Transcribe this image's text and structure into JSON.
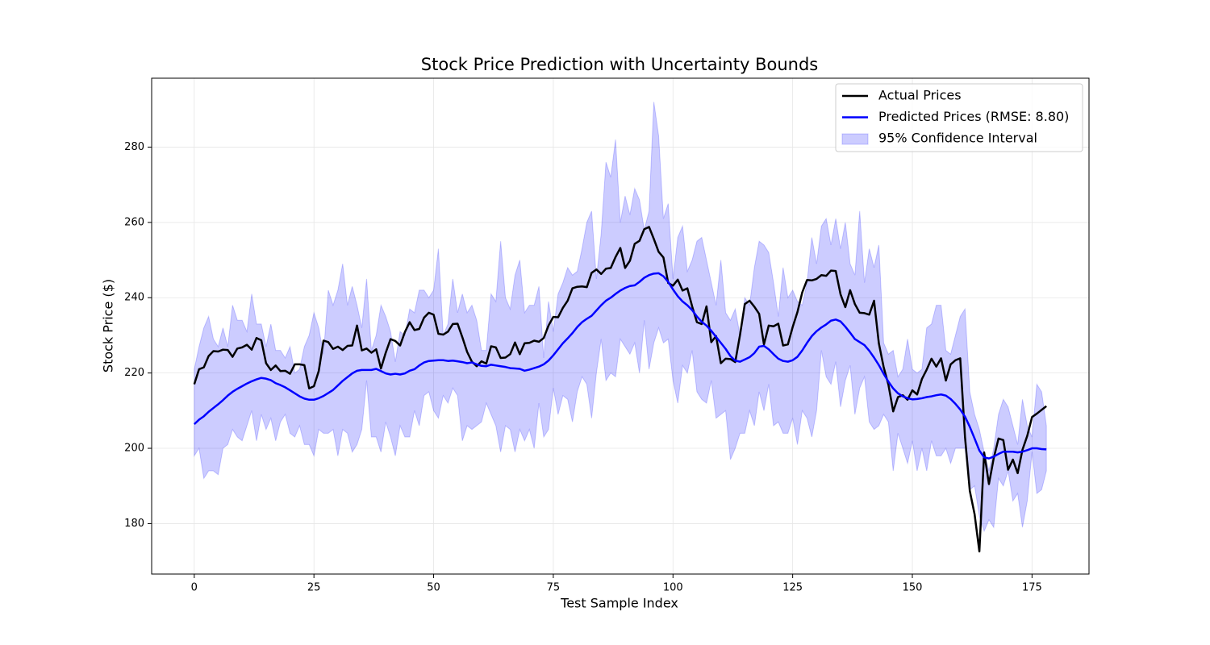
{
  "chart_data": {
    "type": "line",
    "title": "Stock Price Prediction with Uncertainty Bounds",
    "xlabel": "Test Sample Index",
    "ylabel": "Stock Price ($)",
    "x": [
      0,
      1,
      2,
      3,
      4,
      5,
      6,
      7,
      8,
      9,
      10,
      11,
      12,
      13,
      14,
      15,
      16,
      17,
      18,
      19,
      20,
      21,
      22,
      23,
      24,
      25,
      26,
      27,
      28,
      29,
      30,
      31,
      32,
      33,
      34,
      35,
      36,
      37,
      38,
      39,
      40,
      41,
      42,
      43,
      44,
      45,
      46,
      47,
      48,
      49,
      50,
      51,
      52,
      53,
      54,
      55,
      56,
      57,
      58,
      59,
      60,
      61,
      62,
      63,
      64,
      65,
      66,
      67,
      68,
      69,
      70,
      71,
      72,
      73,
      74,
      75,
      76,
      77,
      78,
      79,
      80,
      81,
      82,
      83,
      84,
      85,
      86,
      87,
      88,
      89,
      90,
      91,
      92,
      93,
      94,
      95,
      96,
      97,
      98,
      99,
      100,
      101,
      102,
      103,
      104,
      105,
      106,
      107,
      108,
      109,
      110,
      111,
      112,
      113,
      114,
      115,
      116,
      117,
      118,
      119,
      120,
      121,
      122,
      123,
      124,
      125,
      126,
      127,
      128,
      129,
      130,
      131,
      132,
      133,
      134,
      135,
      136,
      137,
      138,
      139,
      140,
      141,
      142,
      143,
      144,
      145,
      146,
      147,
      148,
      149,
      150,
      151,
      152,
      153,
      154,
      155,
      156,
      157,
      158,
      159,
      160,
      161,
      162,
      163,
      164,
      165,
      166,
      167,
      168,
      169,
      170,
      171,
      172,
      173,
      174,
      175,
      176,
      177,
      178
    ],
    "series": [
      {
        "name": "Actual Prices",
        "color": "#000000",
        "values": [
          217,
          221,
          221.5,
          224.5,
          225.8,
          225.7,
          226.2,
          226.1,
          224.3,
          226.5,
          226.8,
          227.5,
          226.2,
          229.3,
          228.7,
          222.6,
          220.8,
          222,
          220.5,
          220.6,
          219.8,
          222.3,
          222.3,
          222.1,
          215.9,
          216.5,
          220.5,
          228.6,
          228.2,
          226.4,
          227,
          226.1,
          227.2,
          227.3,
          232.6,
          226,
          226.5,
          225.4,
          226.3,
          221.2,
          225.4,
          229,
          228.5,
          227.3,
          230.9,
          233.5,
          231.4,
          231.7,
          234.7,
          236,
          235.5,
          230.4,
          230.2,
          231,
          233,
          233.1,
          229.5,
          225.6,
          223,
          221.8,
          223.1,
          222.5,
          227.1,
          226.8,
          224,
          224.1,
          225,
          228.1,
          225,
          227.9,
          228,
          228.6,
          228.3,
          229.3,
          232.6,
          234.9,
          234.8,
          237.3,
          239.2,
          242.5,
          242.9,
          243,
          242.8,
          246.6,
          247.5,
          246.3,
          247.7,
          247.9,
          250.8,
          253.2,
          247.9,
          249.8,
          254.3,
          255.1,
          258.2,
          258.8,
          255.6,
          252.2,
          250.7,
          243.9,
          243.2,
          244.8,
          241.9,
          242.5,
          237.7,
          233.5,
          233,
          237.7,
          228.2,
          229.8,
          222.6,
          223.8,
          223.7,
          222.9,
          230.1,
          238.3,
          239.2,
          237.6,
          235.7,
          227.6,
          232.6,
          232.4,
          233.1,
          227.3,
          227.6,
          232.2,
          236.2,
          241.4,
          244.7,
          244.6,
          245,
          246,
          245.8,
          247.2,
          247.1,
          240.9,
          237.5,
          242,
          238.3,
          236,
          235.9,
          235.5,
          239.2,
          227.9,
          221.6,
          216.9,
          209.8,
          213.6,
          214.1,
          212.9,
          215.4,
          214.3,
          218.4,
          220.9,
          223.8,
          221.7,
          223.9,
          218,
          222.3,
          223.4,
          223.9,
          203,
          188.7,
          182.5,
          172.6,
          198.9,
          190.5,
          197.4,
          202.6,
          202.2,
          194.3,
          197,
          193.4,
          199.6,
          203.3,
          208.3,
          209.2,
          210.2,
          211.2
        ]
      },
      {
        "name": "Predicted Prices (RMSE: 8.80)",
        "color": "#0000ff",
        "values": [
          206.4,
          207.6,
          208.5,
          209.7,
          210.7,
          211.7,
          212.8,
          214,
          215,
          215.8,
          216.5,
          217.2,
          217.8,
          218.3,
          218.7,
          218.5,
          218.1,
          217.3,
          216.8,
          216.2,
          215.4,
          214.6,
          213.8,
          213.2,
          212.9,
          212.9,
          213.3,
          213.9,
          214.7,
          215.5,
          216.7,
          217.9,
          218.9,
          219.9,
          220.6,
          220.8,
          220.8,
          220.8,
          221.1,
          220.5,
          219.9,
          219.6,
          219.8,
          219.6,
          219.9,
          220.6,
          221,
          222,
          222.8,
          223.2,
          223.3,
          223.4,
          223.4,
          223.2,
          223.3,
          223.1,
          222.9,
          222.6,
          222.8,
          222.3,
          221.9,
          221.8,
          222.2,
          222,
          221.8,
          221.6,
          221.3,
          221.2,
          221.1,
          220.6,
          220.9,
          221.3,
          221.7,
          222.3,
          223.3,
          224.7,
          226.3,
          227.9,
          229.2,
          230.6,
          232.2,
          233.5,
          234.4,
          235.2,
          236.6,
          238,
          239.2,
          240,
          241,
          241.9,
          242.6,
          243.1,
          243.3,
          244.2,
          245.3,
          246,
          246.4,
          246.5,
          245.7,
          244.2,
          242.2,
          240.4,
          239,
          238,
          236.7,
          235,
          233.6,
          232.6,
          231.2,
          229.6,
          228,
          226.4,
          224.5,
          223.3,
          223,
          223.6,
          224.2,
          225.3,
          227,
          227.2,
          226.3,
          225,
          223.8,
          223.2,
          223,
          223.4,
          224.3,
          226,
          228,
          229.8,
          231.1,
          232.1,
          232.9,
          233.9,
          234.2,
          233.7,
          232.3,
          230.7,
          229,
          228.2,
          227.4,
          225.9,
          224.1,
          222.1,
          219.8,
          217.7,
          215.9,
          214.6,
          213.8,
          213.3,
          213,
          213.1,
          213.3,
          213.6,
          213.8,
          214.1,
          214.3,
          214,
          213.1,
          211.8,
          210.3,
          208.4,
          205.7,
          202.6,
          199.4,
          197.6,
          197.3,
          197.8,
          198.5,
          199.1,
          199.1,
          199.1,
          198.9,
          199.1,
          199.5,
          200,
          200,
          199.8,
          199.7
        ]
      },
      {
        "name": "95% Confidence Interval",
        "color": "#0000ff",
        "opacity": 0.2,
        "upper": [
          221,
          227,
          232,
          235,
          229,
          227,
          232,
          227,
          238,
          234,
          234,
          231,
          241,
          233,
          233,
          227,
          233,
          226,
          226,
          224,
          227,
          220,
          221,
          227,
          230,
          236,
          232,
          225,
          242,
          238,
          242,
          249,
          238,
          243,
          238,
          232,
          245,
          226,
          230,
          238,
          235,
          231,
          223,
          231,
          230,
          237,
          236,
          242,
          242,
          240,
          242,
          253,
          230,
          233,
          245,
          236,
          241,
          236,
          238,
          234,
          226,
          226,
          241,
          239,
          255,
          240,
          237,
          246,
          250,
          236,
          238,
          238,
          243,
          224,
          239,
          231,
          241,
          244,
          248,
          246,
          247,
          253,
          260,
          263,
          245,
          257,
          276,
          272,
          282,
          260,
          267,
          262,
          269,
          266,
          258,
          263,
          292,
          283,
          261,
          265,
          245,
          256,
          259,
          247,
          250,
          255,
          256,
          250,
          244,
          238,
          250,
          236,
          234,
          237,
          230,
          240,
          238,
          248,
          255,
          254,
          252,
          244,
          235,
          248,
          240,
          242,
          239,
          238,
          244,
          256,
          249,
          259,
          261,
          254,
          261,
          253,
          260,
          249,
          246,
          263,
          244,
          253,
          248,
          254,
          228,
          225,
          226,
          219,
          221,
          229,
          221,
          220,
          221,
          232,
          233,
          238,
          238,
          226,
          225,
          230,
          235,
          237,
          215,
          209,
          205,
          199,
          194,
          200,
          209,
          213,
          211,
          206,
          201,
          213,
          206,
          203,
          217,
          215,
          206
        ],
        "lower": [
          198,
          200,
          192,
          194,
          194,
          193,
          200,
          201,
          205,
          203,
          202,
          206,
          210,
          202,
          209,
          205,
          208,
          202,
          207,
          209,
          204,
          203,
          206,
          201,
          201,
          198,
          205,
          204,
          204,
          205,
          198,
          205,
          204,
          199,
          201,
          205,
          218,
          203,
          203,
          199,
          207,
          203,
          198,
          206,
          203,
          203,
          210,
          206,
          214,
          215,
          210,
          208,
          214,
          212,
          216,
          214,
          202,
          206,
          205,
          206,
          207,
          212,
          209,
          206,
          199,
          206,
          205,
          199,
          205,
          202,
          205,
          200,
          212,
          203,
          205,
          216,
          209,
          214,
          213,
          207,
          215,
          219,
          217,
          208,
          220,
          229,
          218,
          220,
          219,
          229,
          227,
          225,
          228,
          220,
          234,
          221,
          228,
          232,
          228,
          229,
          218,
          212,
          222,
          220,
          226,
          215,
          213,
          212,
          218,
          208,
          209,
          210,
          197,
          200,
          204,
          204,
          210,
          206,
          215,
          210,
          217,
          206,
          207,
          204,
          204,
          208,
          201,
          210,
          208,
          203,
          210,
          226,
          219,
          217,
          223,
          211,
          218,
          222,
          209,
          216,
          219,
          207,
          205,
          206,
          209,
          207,
          194,
          204,
          200,
          196,
          202,
          194,
          200,
          194,
          202,
          198,
          198,
          200,
          196,
          200,
          200,
          200,
          189,
          190,
          182,
          178,
          181,
          179,
          192,
          190,
          194,
          186,
          188,
          179,
          186,
          199,
          188,
          189,
          194
        ]
      }
    ],
    "xlim": [
      -8.9,
      186.9
    ],
    "xticks": [
      0,
      25,
      50,
      75,
      100,
      125,
      150,
      175
    ],
    "ylim": [
      166.6,
      298.3
    ],
    "yticks": [
      180,
      200,
      220,
      240,
      260,
      280
    ],
    "grid": true,
    "legend": "upper right"
  }
}
